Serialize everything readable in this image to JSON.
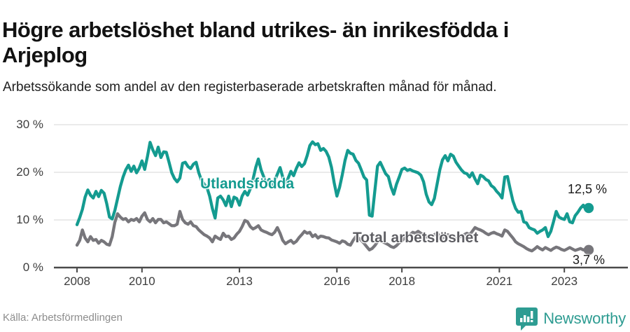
{
  "header": {
    "title": "Högre arbetslöshet bland utrikes- än inrikesfödda i Arjeplog",
    "subtitle": "Arbetssökande som andel av den registerbaserade arbetskraften månad för månad."
  },
  "footer": {
    "source": "Källa: Arbetsförmedlingen",
    "brand": "Newsworthy"
  },
  "colors": {
    "accent_teal": "#149b90",
    "line_gray": "#77767b",
    "label_gray": "#5e5e63",
    "axis": "#4a4a4a",
    "grid": "#e4e4e4",
    "brand_teal": "#2e9c92"
  },
  "chart_data": {
    "type": "line",
    "title": "Högre arbetslöshet bland utrikes- än inrikesfödda i Arjeplog",
    "subtitle": "Arbetssökande som andel av den registerbaserade arbetskraften månad för månad.",
    "x_unit": "month",
    "x_start": "2008-01",
    "x_end": "2023-10",
    "ylim": [
      0,
      32
    ],
    "grid": true,
    "legend_position": "inline-labels",
    "y_ticks": [
      {
        "v": 30,
        "label": "30 %"
      },
      {
        "v": 20,
        "label": "20 %"
      },
      {
        "v": 10,
        "label": "10 %"
      },
      {
        "v": 0,
        "label": "0 %"
      }
    ],
    "x_ticks": [
      {
        "year": 2008,
        "label": "2008"
      },
      {
        "year": 2010,
        "label": "2010"
      },
      {
        "year": 2013,
        "label": "2013"
      },
      {
        "year": 2016,
        "label": "2016"
      },
      {
        "year": 2018,
        "label": "2018"
      },
      {
        "year": 2021,
        "label": "2021"
      },
      {
        "year": 2023,
        "label": "2023"
      }
    ],
    "series": [
      {
        "name": "Utlandsfödda",
        "color": "#149b90",
        "end_label": "12,5 %",
        "end_value": 12.5,
        "values": [
          9.0,
          10.5,
          12.2,
          14.8,
          16.3,
          15.2,
          14.6,
          16.0,
          14.9,
          16.2,
          15.6,
          13.4,
          10.6,
          10.2,
          12.0,
          14.5,
          17.0,
          19.0,
          20.5,
          21.5,
          20.2,
          21.3,
          19.9,
          20.9,
          22.4,
          20.6,
          23.3,
          26.3,
          24.7,
          23.5,
          25.3,
          23.1,
          24.3,
          24.2,
          22.1,
          19.9,
          18.7,
          18.0,
          18.8,
          21.9,
          22.1,
          21.2,
          20.8,
          21.7,
          22.1,
          19.9,
          18.3,
          17.5,
          16.8,
          15.0,
          12.4,
          10.4,
          14.6,
          15.0,
          14.2,
          13.0,
          15.0,
          12.8,
          14.8,
          14.5,
          13.1,
          15.0,
          16.0,
          15.2,
          16.5,
          18.5,
          21.0,
          22.8,
          20.5,
          19.0,
          17.8,
          18.5,
          17.4,
          18.2,
          19.6,
          21.0,
          19.0,
          17.5,
          18.8,
          20.2,
          19.3,
          20.8,
          22.0,
          21.2,
          21.8,
          23.5,
          25.6,
          26.4,
          25.8,
          26.0,
          24.6,
          25.0,
          24.4,
          23.2,
          21.0,
          17.8,
          15.0,
          16.9,
          19.5,
          22.5,
          24.6,
          24.0,
          23.8,
          22.5,
          21.9,
          20.5,
          19.0,
          18.4,
          11.0,
          10.8,
          16.0,
          21.3,
          22.1,
          20.9,
          19.7,
          19.1,
          16.9,
          15.4,
          17.5,
          19.0,
          20.6,
          20.9,
          20.4,
          20.6,
          20.3,
          20.1,
          19.9,
          19.4,
          18.0,
          15.4,
          13.8,
          13.2,
          14.5,
          17.5,
          20.5,
          22.6,
          23.5,
          22.4,
          23.8,
          23.4,
          22.1,
          21.3,
          20.5,
          19.9,
          19.7,
          19.0,
          19.9,
          18.6,
          17.6,
          19.4,
          19.1,
          18.5,
          18.2,
          17.2,
          16.8,
          16.0,
          15.4,
          14.6,
          19.0,
          19.1,
          16.5,
          14.0,
          12.4,
          11.6,
          11.8,
          9.6,
          9.4,
          8.4,
          8.1,
          7.9,
          7.2,
          7.6,
          7.9,
          8.4,
          6.5,
          7.6,
          9.6,
          11.8,
          10.6,
          10.3,
          10.1,
          11.3,
          9.6,
          9.4,
          10.9,
          11.6,
          12.5,
          13.1,
          12.1,
          12.5
        ]
      },
      {
        "name": "Total arbetslöshet",
        "color": "#77767b",
        "end_label": "3,7 %",
        "end_value": 3.7,
        "values": [
          4.7,
          5.7,
          7.9,
          6.2,
          5.4,
          6.5,
          5.7,
          5.9,
          5.1,
          5.7,
          5.4,
          4.9,
          4.7,
          6.5,
          9.5,
          11.3,
          10.6,
          10.1,
          10.3,
          9.6,
          10.1,
          9.9,
          10.3,
          9.6,
          10.8,
          11.5,
          10.1,
          9.6,
          10.3,
          9.4,
          10.1,
          10.1,
          9.4,
          9.6,
          9.2,
          8.8,
          8.8,
          9.1,
          11.8,
          10.1,
          9.4,
          9.1,
          9.6,
          8.8,
          8.6,
          7.9,
          7.4,
          6.9,
          6.6,
          6.2,
          5.4,
          6.6,
          6.2,
          5.9,
          7.2,
          6.5,
          6.6,
          5.9,
          6.2,
          7.0,
          7.6,
          8.6,
          9.9,
          9.6,
          8.6,
          8.1,
          8.4,
          8.8,
          7.9,
          7.6,
          7.4,
          7.1,
          6.9,
          7.4,
          8.4,
          7.2,
          5.7,
          5.0,
          5.4,
          5.7,
          5.1,
          5.5,
          6.3,
          6.9,
          7.6,
          7.2,
          7.4,
          6.5,
          6.9,
          6.2,
          6.6,
          6.5,
          6.3,
          6.2,
          5.8,
          5.6,
          5.4,
          5.1,
          5.6,
          5.4,
          4.9,
          4.7,
          5.7,
          6.5,
          6.2,
          5.7,
          5.1,
          4.4,
          3.7,
          4.0,
          4.6,
          5.4,
          5.7,
          5.4,
          5.1,
          4.8,
          4.4,
          4.2,
          4.6,
          5.2,
          5.6,
          6.2,
          6.6,
          6.9,
          7.4,
          7.2,
          7.6,
          7.2,
          6.8,
          6.5,
          6.2,
          6.6,
          6.9,
          7.2,
          6.6,
          6.2,
          6.5,
          6.9,
          6.6,
          6.2,
          6.0,
          6.3,
          6.6,
          6.9,
          7.2,
          6.9,
          7.6,
          8.4,
          8.1,
          7.9,
          7.6,
          7.2,
          6.9,
          7.2,
          7.4,
          7.1,
          6.9,
          6.6,
          7.9,
          7.6,
          6.9,
          6.2,
          5.4,
          5.0,
          4.7,
          4.4,
          4.0,
          3.7,
          3.5,
          3.9,
          4.4,
          4.0,
          3.7,
          4.2,
          3.9,
          3.6,
          4.0,
          4.3,
          4.1,
          3.8,
          3.6,
          3.9,
          4.2,
          3.9,
          3.6,
          3.8,
          4.0,
          3.7,
          3.9,
          3.7
        ]
      }
    ]
  }
}
